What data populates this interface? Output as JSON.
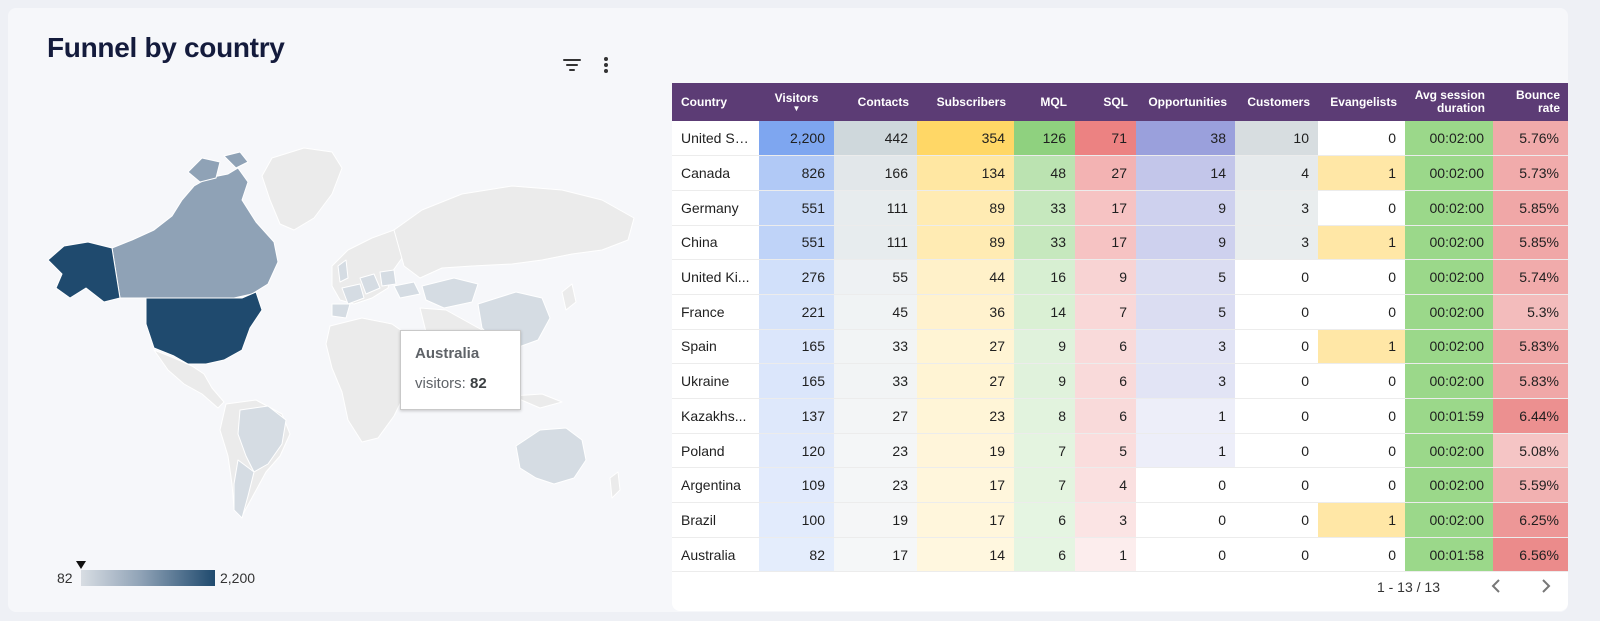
{
  "title": "Funnel by country",
  "icons": {
    "filter": "filter-icon",
    "more": "more-vert-icon"
  },
  "tooltip": {
    "country": "Australia",
    "label": "visitors:",
    "value": "82"
  },
  "legend": {
    "min": "82",
    "max": "2,200"
  },
  "table": {
    "columns": [
      "Country",
      "Visitors",
      "Contacts",
      "Subscribers",
      "MQL",
      "SQL",
      "Opportunities",
      "Customers",
      "Evangelists",
      "Avg session duration",
      "Bounce rate"
    ],
    "sort_column": "Visitors",
    "rows": [
      [
        "United St...",
        "2,200",
        "442",
        "354",
        "126",
        "71",
        "38",
        "10",
        "0",
        "00:02:00",
        "5.76%"
      ],
      [
        "Canada",
        "826",
        "166",
        "134",
        "48",
        "27",
        "14",
        "4",
        "1",
        "00:02:00",
        "5.73%"
      ],
      [
        "Germany",
        "551",
        "111",
        "89",
        "33",
        "17",
        "9",
        "3",
        "0",
        "00:02:00",
        "5.85%"
      ],
      [
        "China",
        "551",
        "111",
        "89",
        "33",
        "17",
        "9",
        "3",
        "1",
        "00:02:00",
        "5.85%"
      ],
      [
        "United Ki...",
        "276",
        "55",
        "44",
        "16",
        "9",
        "5",
        "0",
        "0",
        "00:02:00",
        "5.74%"
      ],
      [
        "France",
        "221",
        "45",
        "36",
        "14",
        "7",
        "5",
        "0",
        "0",
        "00:02:00",
        "5.3%"
      ],
      [
        "Spain",
        "165",
        "33",
        "27",
        "9",
        "6",
        "3",
        "0",
        "1",
        "00:02:00",
        "5.83%"
      ],
      [
        "Ukraine",
        "165",
        "33",
        "27",
        "9",
        "6",
        "3",
        "0",
        "0",
        "00:02:00",
        "5.83%"
      ],
      [
        "Kazakhs...",
        "137",
        "27",
        "23",
        "8",
        "6",
        "1",
        "0",
        "0",
        "00:01:59",
        "6.44%"
      ],
      [
        "Poland",
        "120",
        "23",
        "19",
        "7",
        "5",
        "1",
        "0",
        "0",
        "00:02:00",
        "5.08%"
      ],
      [
        "Argentina",
        "109",
        "23",
        "17",
        "7",
        "4",
        "0",
        "0",
        "0",
        "00:02:00",
        "5.59%"
      ],
      [
        "Brazil",
        "100",
        "19",
        "17",
        "6",
        "3",
        "0",
        "0",
        "1",
        "00:02:00",
        "6.25%"
      ],
      [
        "Australia",
        "82",
        "17",
        "14",
        "6",
        "1",
        "0",
        "0",
        "0",
        "00:01:58",
        "6.56%"
      ]
    ]
  },
  "heatmap_colors": {
    "Visitors": "#7ea6f0",
    "Contacts": "#cfd8dc",
    "Subscribers": "#ffd766",
    "MQL": "#8fd17f",
    "SQL": "#ec8282",
    "Opportunities": "#9aa0dc",
    "Customers": "#d7dde0",
    "Evangelists": "#ffe7a6",
    "Avg session duration": "#9bd88a",
    "Bounce rate": "#eb8b8b"
  },
  "map_colors": {
    "high": "#1f4a6e",
    "mid": "#8fa2b6",
    "low": "#d5dce3",
    "none": "#ebebeb"
  },
  "pager": {
    "range": "1 - 13 / 13"
  }
}
